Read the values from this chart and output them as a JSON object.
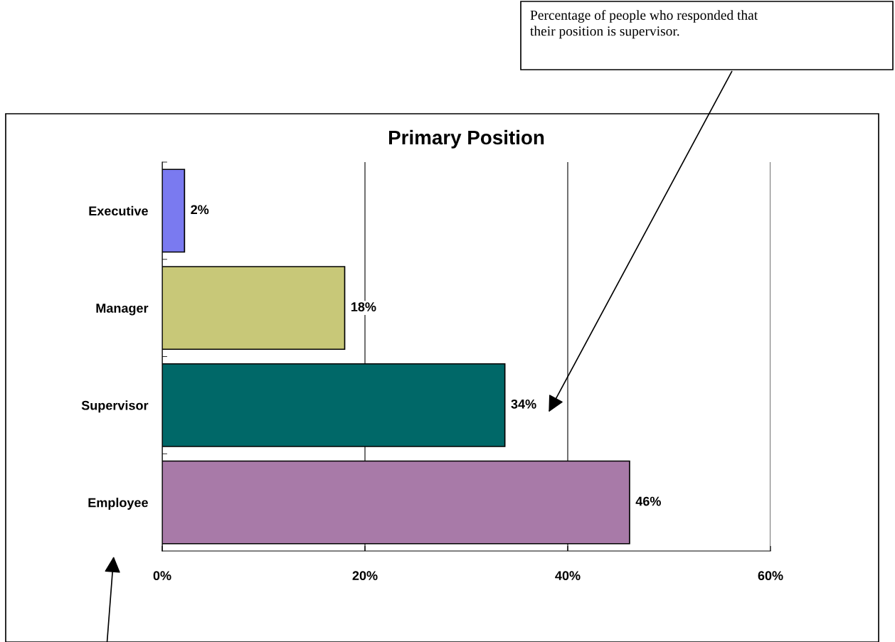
{
  "chart_data": {
    "type": "bar",
    "orientation": "horizontal",
    "title": "Primary Position",
    "categories": [
      "Executive",
      "Manager",
      "Supervisor",
      "Employee"
    ],
    "values": [
      2.2,
      18,
      33.8,
      46.1
    ],
    "value_labels": [
      "2%",
      "18%",
      "34%",
      "46%"
    ],
    "colors": [
      "#7a7af0",
      "#c8c878",
      "#006868",
      "#a87aa8"
    ],
    "xlim": [
      0,
      60
    ],
    "xticks": [
      {
        "value": 0,
        "label": "0%"
      },
      {
        "value": 20,
        "label": "20%"
      },
      {
        "value": 40,
        "label": "40%"
      },
      {
        "value": 60,
        "label": "60%"
      }
    ],
    "grid": "x",
    "annotations": [
      "Percentage of people who responded that their position is supervisor."
    ]
  }
}
